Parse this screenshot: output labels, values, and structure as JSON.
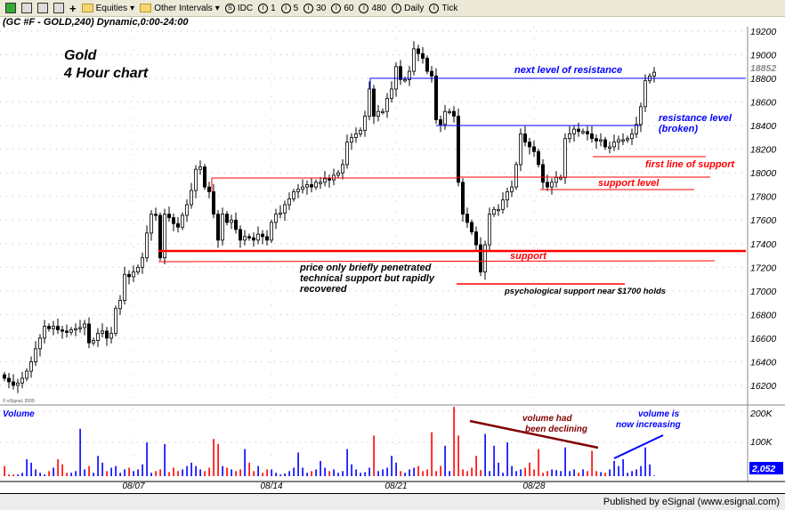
{
  "toolbar": {
    "items": [
      "Equities",
      "Other Intervals",
      "IDC",
      "1",
      "5",
      "30",
      "60",
      "480",
      "Daily",
      "Tick"
    ]
  },
  "chart_title": "(GC #F - GOLD,240) Dynamic,0:00-24:00",
  "footer": "Published by eSignal (www.esignal.com)",
  "copyright": "© eSignal, 2009",
  "colors": {
    "up": "#ffffff",
    "down": "#000000",
    "support": "#ff0000",
    "resistance": "#0000ff",
    "vol_up": "#0000ff",
    "vol_down": "#ff0000",
    "last_price_bg": "#0000ff"
  },
  "annotations": {
    "title1": "Gold",
    "title2": "4 Hour chart",
    "next_resistance": "next level of resistance",
    "resistance1": "resistance level",
    "resistance2": "(broken)",
    "first_support": "first line of support",
    "support_level": "support level",
    "support": "support",
    "penetrated1": "price only briefly penetrated",
    "penetrated2": "technical support but rapidly",
    "penetrated3": "recovered",
    "psych": "psychological support near $1700 holds",
    "vol_decl1": "volume had",
    "vol_decl2": "been declining",
    "vol_inc1": "volume is",
    "vol_inc2": "now increasing"
  },
  "volume_label": "Volume",
  "last_price": "18852",
  "last_volume": "2,052",
  "chart_data": {
    "type": "candlestick",
    "interval": "240",
    "y_ticks": [
      16200,
      16400,
      16600,
      16800,
      17000,
      17200,
      17400,
      17600,
      17800,
      18000,
      18200,
      18400,
      18600,
      18800,
      19000,
      19200
    ],
    "ylim": [
      16100,
      19300
    ],
    "x_ticks": [
      {
        "label": "08/07",
        "index": 29
      },
      {
        "label": "08/14",
        "index": 60
      },
      {
        "label": "08/21",
        "index": 88
      },
      {
        "label": "08/28",
        "index": 119
      }
    ],
    "close": [
      16260,
      16230,
      16200,
      16220,
      16260,
      16320,
      16400,
      16510,
      16600,
      16700,
      16680,
      16700,
      16670,
      16660,
      16650,
      16670,
      16680,
      16690,
      16720,
      16560,
      16580,
      16640,
      16660,
      16600,
      16640,
      16850,
      16920,
      17140,
      17120,
      17160,
      17200,
      17280,
      17490,
      17650,
      17640,
      17280,
      17650,
      17620,
      17570,
      17540,
      17640,
      17730,
      17850,
      18030,
      18050,
      17880,
      17840,
      17650,
      17430,
      17650,
      17580,
      17600,
      17520,
      17430,
      17460,
      17450,
      17430,
      17480,
      17460,
      17430,
      17580,
      17650,
      17660,
      17730,
      17780,
      17840,
      17860,
      17880,
      17900,
      17880,
      17920,
      17920,
      17950,
      17940,
      17980,
      18000,
      18070,
      18260,
      18300,
      18330,
      18360,
      18480,
      18710,
      18480,
      18520,
      18520,
      18630,
      18710,
      18900,
      18790,
      18790,
      18860,
      19050,
      19010,
      18970,
      18860,
      18820,
      18450,
      18410,
      18520,
      18520,
      18480,
      17920,
      17650,
      17580,
      17500,
      17390,
      17160,
      17390,
      17650,
      17690,
      17690,
      17770,
      17840,
      17880,
      18070,
      18330,
      18260,
      18220,
      18180,
      18070,
      17920,
      17880,
      17920,
      17960,
      17960,
      18290,
      18330,
      18370,
      18350,
      18350,
      18330,
      18290,
      18270,
      18280,
      18220,
      18220,
      18260,
      18280,
      18280,
      18290,
      18330,
      18410,
      18560,
      18780,
      18820,
      18852
    ],
    "volume_k": [
      30,
      5,
      5,
      5,
      10,
      50,
      40,
      20,
      10,
      5,
      15,
      25,
      50,
      35,
      10,
      10,
      15,
      140,
      20,
      30,
      10,
      60,
      40,
      15,
      25,
      30,
      10,
      20,
      25,
      15,
      20,
      35,
      100,
      10,
      15,
      20,
      95,
      12,
      25,
      15,
      20,
      30,
      40,
      30,
      20,
      15,
      25,
      110,
      95,
      30,
      25,
      20,
      15,
      20,
      80,
      40,
      15,
      30,
      10,
      20,
      20,
      10,
      5,
      8,
      15,
      25,
      70,
      25,
      10,
      15,
      20,
      45,
      25,
      15,
      20,
      10,
      15,
      80,
      35,
      20,
      10,
      12,
      25,
      120,
      15,
      20,
      25,
      60,
      40,
      15,
      10,
      20,
      25,
      30,
      15,
      20,
      130,
      15,
      30,
      90,
      15,
      205,
      120,
      20,
      15,
      25,
      60,
      18,
      125,
      15,
      90,
      40,
      10,
      100,
      30,
      15,
      20,
      25,
      40,
      20,
      80,
      10,
      15,
      20,
      18,
      15,
      85,
      15,
      20,
      10,
      20,
      15,
      75,
      15,
      12,
      10,
      20,
      45,
      30,
      50,
      10,
      15,
      20,
      30,
      85,
      35,
      2
    ]
  }
}
